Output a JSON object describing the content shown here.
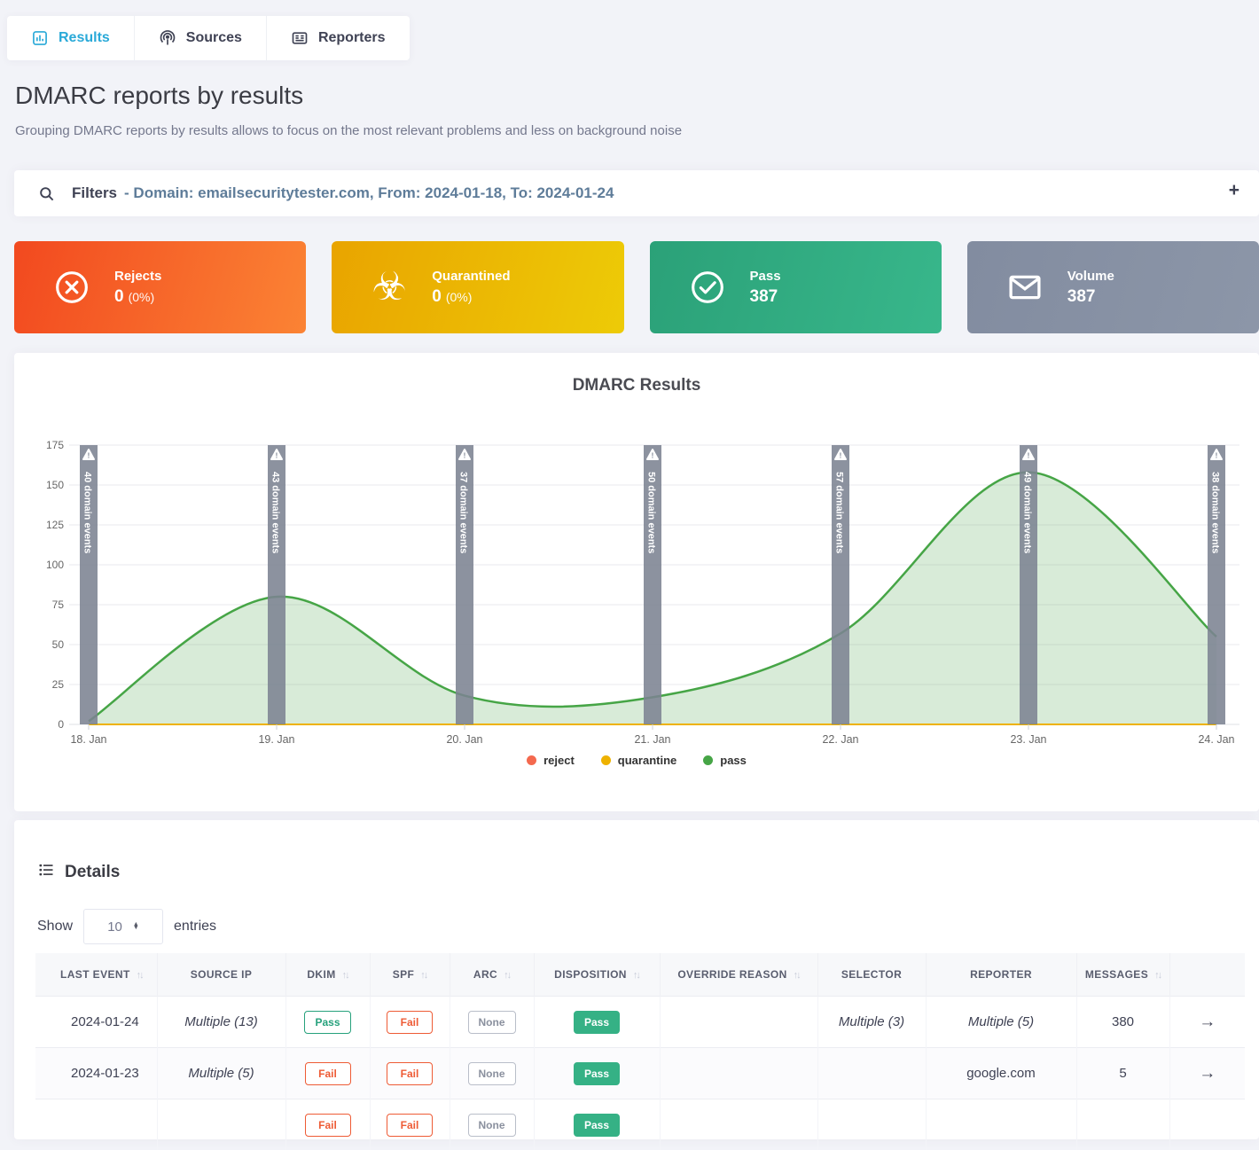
{
  "colors": {
    "accent": "#29a9d8",
    "pass_green": "#26a17c",
    "fail_orange": "#ee5b35",
    "none_gray": "#8a909e",
    "filled_pass": "#35b185"
  },
  "tabs": [
    {
      "label": "Results",
      "icon": "bar-chart-icon",
      "active": true
    },
    {
      "label": "Sources",
      "icon": "podcast-icon",
      "active": false
    },
    {
      "label": "Reporters",
      "icon": "newspaper-icon",
      "active": false
    }
  ],
  "header": {
    "title": "DMARC reports by results",
    "subtitle": "Grouping DMARC reports by results allows to focus on the most relevant problems and less on background noise"
  },
  "filters": {
    "label": "Filters",
    "summary": "- Domain: emailsecuritytester.com, From: 2024-01-18, To: 2024-01-24",
    "expand_icon_label": "+"
  },
  "cards": [
    {
      "label": "Rejects",
      "value": "0",
      "percent": "(0%)",
      "icon": "x-circle-icon",
      "color_from": "#f2491f",
      "color_to": "#fb8334"
    },
    {
      "label": "Quarantined",
      "value": "0",
      "percent": "(0%)",
      "icon": "biohazard-icon",
      "color_from": "#e9a400",
      "color_to": "#edcb07"
    },
    {
      "label": "Pass",
      "value": "387",
      "percent": "",
      "icon": "check-circle-icon",
      "color_from": "#2ba178",
      "color_to": "#38b78b"
    },
    {
      "label": "Volume",
      "value": "387",
      "percent": "",
      "icon": "envelope-icon",
      "color_from": "#828ca0",
      "color_to": "#8c96a8"
    }
  ],
  "chart_data": {
    "type": "area",
    "title": "DMARC Results",
    "x": [
      "18. Jan",
      "19. Jan",
      "20. Jan",
      "21. Jan",
      "22. Jan",
      "23. Jan",
      "24. Jan"
    ],
    "series": [
      {
        "name": "reject",
        "color": "#f4694e",
        "values": [
          0,
          0,
          0,
          0,
          0,
          0,
          0
        ]
      },
      {
        "name": "quarantine",
        "color": "#eeb200",
        "values": [
          0,
          0,
          0,
          0,
          0,
          0,
          0
        ]
      },
      {
        "name": "pass",
        "color": "#46a546",
        "fill": "rgba(76,166,76,0.22)",
        "values": [
          2,
          80,
          18,
          17,
          57,
          158,
          55
        ]
      }
    ],
    "annotations": [
      {
        "x": "18. Jan",
        "value": 40,
        "label": "40 domain events"
      },
      {
        "x": "19. Jan",
        "value": 43,
        "label": "43 domain events"
      },
      {
        "x": "20. Jan",
        "value": 37,
        "label": "37 domain events"
      },
      {
        "x": "21. Jan",
        "value": 50,
        "label": "50 domain events"
      },
      {
        "x": "22. Jan",
        "value": 57,
        "label": "57 domain events"
      },
      {
        "x": "23. Jan",
        "value": 49,
        "label": "49 domain events"
      },
      {
        "x": "24. Jan",
        "value": 38,
        "label": "38 domain events"
      }
    ],
    "annotation_color": "#7c8392",
    "ylim": [
      0,
      175
    ],
    "yticks": [
      0,
      25,
      50,
      75,
      100,
      125,
      150,
      175
    ],
    "grid": true,
    "legend_position": "bottom",
    "legend": [
      "reject",
      "quarantine",
      "pass"
    ]
  },
  "details": {
    "title": "Details",
    "show_label": "Show",
    "entries_label": "entries",
    "page_size": "10",
    "columns": [
      {
        "label": "LAST EVENT",
        "sortable": true
      },
      {
        "label": "SOURCE IP",
        "sortable": false
      },
      {
        "label": "DKIM",
        "sortable": true
      },
      {
        "label": "SPF",
        "sortable": true
      },
      {
        "label": "ARC",
        "sortable": true
      },
      {
        "label": "DISPOSITION",
        "sortable": true
      },
      {
        "label": "OVERRIDE REASON",
        "sortable": true
      },
      {
        "label": "SELECTOR",
        "sortable": false
      },
      {
        "label": "REPORTER",
        "sortable": false
      },
      {
        "label": "MESSAGES",
        "sortable": true
      }
    ],
    "sort_icon": "↑↓",
    "row_arrow": "→",
    "rows": [
      {
        "last_event": "2024-01-24",
        "source_ip": "Multiple (13)",
        "dkim": "Pass",
        "spf": "Fail",
        "arc": "None",
        "disposition": "Pass",
        "override_reason": "",
        "selector": "Multiple (3)",
        "reporter": "Multiple (5)",
        "messages": "380"
      },
      {
        "last_event": "2024-01-23",
        "source_ip": "Multiple (5)",
        "dkim": "Fail",
        "spf": "Fail",
        "arc": "None",
        "disposition": "Pass",
        "override_reason": "",
        "selector": "",
        "reporter": "google.com",
        "messages": "5"
      },
      {
        "last_event": "",
        "source_ip": "",
        "dkim": "Fail",
        "spf": "Fail",
        "arc": "None",
        "disposition": "Pass",
        "override_reason": "",
        "selector": "",
        "reporter": "",
        "messages": ""
      }
    ]
  }
}
